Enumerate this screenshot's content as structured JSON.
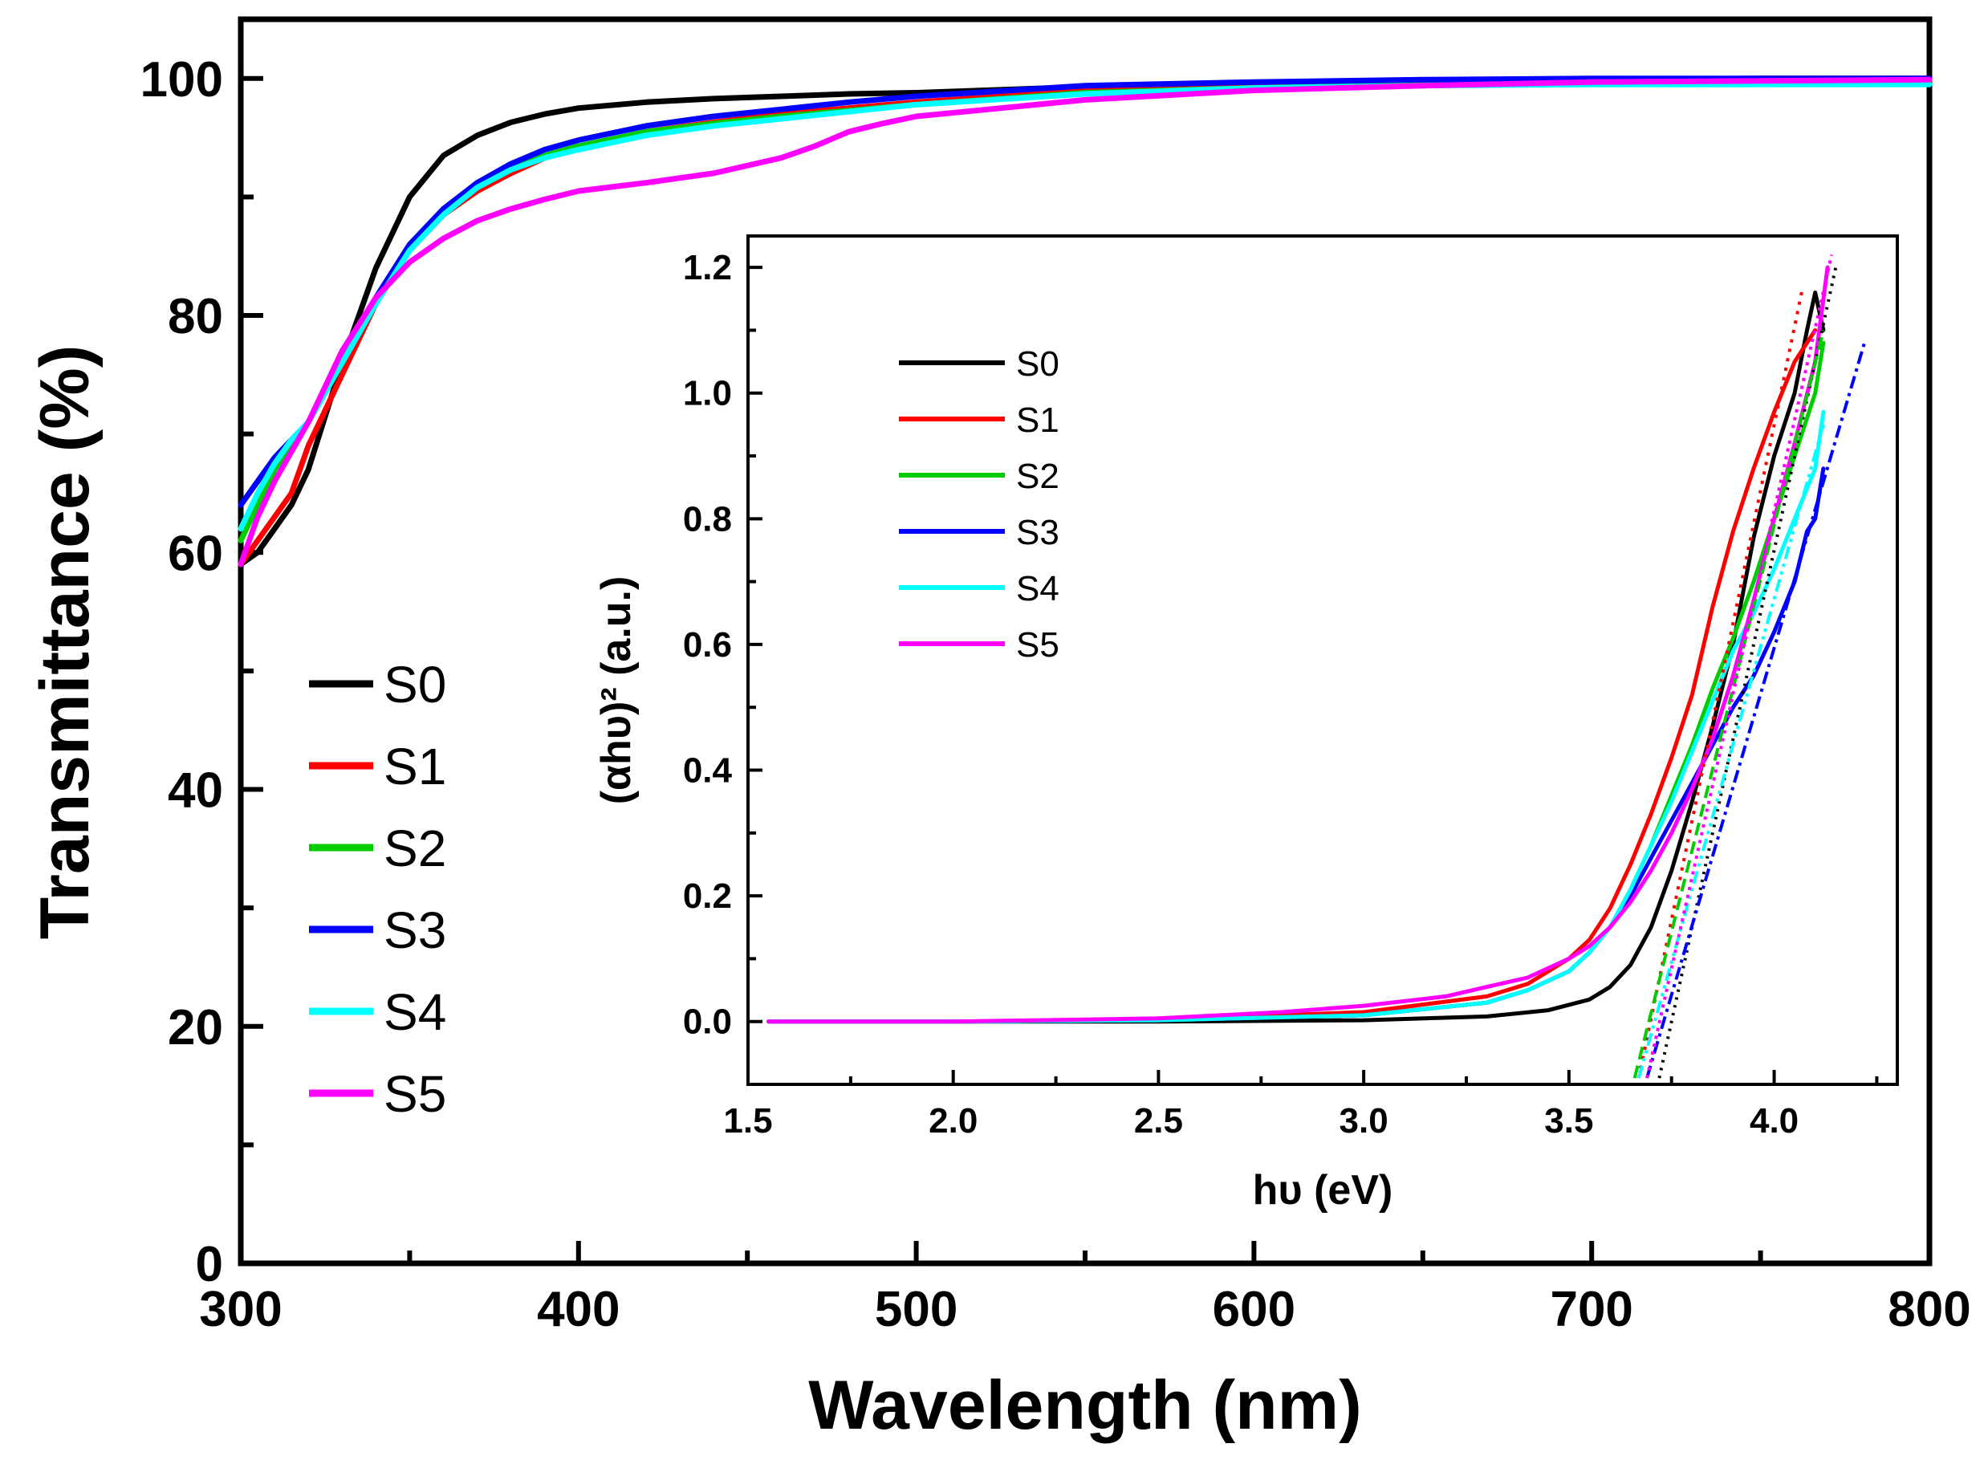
{
  "chart_data": [
    {
      "type": "line",
      "panel": "main",
      "title": "",
      "xlabel": "Wavelength (nm)",
      "ylabel": "Transmittance (%)",
      "xlim": [
        300,
        800
      ],
      "ylim": [
        0,
        105
      ],
      "xticks": [
        "300",
        "400",
        "500",
        "600",
        "700",
        "800"
      ],
      "yticks": [
        "0",
        "20",
        "40",
        "60",
        "80",
        "100"
      ],
      "legend_position": "left-middle",
      "series": [
        {
          "name": "S0",
          "color": "#000000",
          "x": [
            300,
            305,
            310,
            315,
            320,
            330,
            340,
            350,
            360,
            370,
            380,
            390,
            400,
            420,
            440,
            460,
            480,
            500,
            550,
            600,
            650,
            700,
            750,
            800
          ],
          "y": [
            59,
            60,
            62,
            64,
            67,
            76,
            84,
            90,
            93.5,
            95.2,
            96.3,
            97,
            97.5,
            98,
            98.3,
            98.5,
            98.7,
            98.8,
            99.3,
            99.6,
            99.8,
            99.9,
            100,
            100
          ]
        },
        {
          "name": "S1",
          "color": "#ff0000",
          "x": [
            300,
            305,
            310,
            315,
            320,
            330,
            340,
            350,
            360,
            370,
            380,
            390,
            400,
            420,
            440,
            460,
            480,
            500,
            550,
            600,
            650,
            700,
            750,
            800
          ],
          "y": [
            59,
            61,
            63,
            65,
            69,
            75,
            81,
            85.5,
            88.5,
            90.5,
            92,
            93.3,
            94.2,
            95.5,
            96.3,
            97,
            97.5,
            98,
            99,
            99.5,
            99.8,
            99.9,
            100,
            100
          ]
        },
        {
          "name": "S2",
          "color": "#00cc00",
          "x": [
            300,
            305,
            310,
            315,
            320,
            330,
            340,
            350,
            360,
            370,
            380,
            390,
            400,
            420,
            440,
            460,
            480,
            500,
            550,
            600,
            650,
            700,
            750,
            800
          ],
          "y": [
            61,
            64,
            67,
            69,
            71,
            76,
            81,
            85.5,
            88.5,
            90.8,
            92.3,
            93.5,
            94.3,
            95.5,
            96.2,
            96.8,
            97.3,
            97.8,
            98.8,
            99.2,
            99.5,
            99.6,
            99.7,
            99.8
          ]
        },
        {
          "name": "S3",
          "color": "#0000ff",
          "x": [
            300,
            305,
            310,
            315,
            320,
            330,
            340,
            350,
            360,
            370,
            380,
            390,
            400,
            420,
            440,
            460,
            480,
            500,
            550,
            600,
            650,
            700,
            750,
            800
          ],
          "y": [
            64,
            66,
            68,
            69.5,
            71,
            76,
            81.5,
            86,
            89,
            91.2,
            92.8,
            94,
            94.8,
            96,
            96.8,
            97.4,
            98,
            98.5,
            99.4,
            99.7,
            99.9,
            100,
            100,
            100
          ]
        },
        {
          "name": "S4",
          "color": "#00ffff",
          "x": [
            300,
            305,
            310,
            315,
            320,
            330,
            340,
            350,
            360,
            370,
            380,
            390,
            400,
            420,
            440,
            460,
            480,
            500,
            550,
            600,
            650,
            700,
            750,
            800
          ],
          "y": [
            62,
            65,
            67.5,
            69.5,
            71,
            76,
            81,
            85.5,
            88.5,
            90.8,
            92.3,
            93.3,
            94,
            95.2,
            96,
            96.6,
            97.2,
            97.8,
            98.7,
            99.2,
            99.4,
            99.5,
            99.5,
            99.5
          ]
        },
        {
          "name": "S5",
          "color": "#ff00ff",
          "x": [
            300,
            305,
            310,
            315,
            320,
            330,
            340,
            350,
            360,
            370,
            380,
            390,
            400,
            420,
            440,
            460,
            470,
            480,
            490,
            500,
            550,
            600,
            650,
            700,
            750,
            800
          ],
          "y": [
            59,
            63,
            66,
            68.5,
            71,
            77,
            81.5,
            84.5,
            86.5,
            88,
            89,
            89.8,
            90.5,
            91.2,
            92,
            93.3,
            94.3,
            95.5,
            96.2,
            96.8,
            98.2,
            99,
            99.4,
            99.7,
            99.8,
            99.9
          ]
        }
      ]
    },
    {
      "type": "line",
      "panel": "inset",
      "title": "",
      "xlabel": "hυ (eV)",
      "ylabel": "(αhυ)² (a.u.)",
      "xlim": [
        1.5,
        4.3
      ],
      "ylim": [
        -0.1,
        1.25
      ],
      "xticks": [
        "1.5",
        "2.0",
        "2.5",
        "3.0",
        "3.5",
        "4.0"
      ],
      "yticks": [
        "0.0",
        "0.2",
        "0.4",
        "0.6",
        "0.8",
        "1.0",
        "1.2"
      ],
      "legend_position": "top-left",
      "series": [
        {
          "name": "S0",
          "color": "#000000",
          "x": [
            1.55,
            2.0,
            2.5,
            3.0,
            3.3,
            3.45,
            3.55,
            3.6,
            3.65,
            3.7,
            3.75,
            3.8,
            3.85,
            3.9,
            3.95,
            4.0,
            4.05,
            4.08,
            4.1,
            4.12
          ],
          "y": [
            0,
            0,
            0,
            0.002,
            0.008,
            0.018,
            0.035,
            0.055,
            0.09,
            0.15,
            0.24,
            0.35,
            0.47,
            0.6,
            0.77,
            0.9,
            1.0,
            1.1,
            1.16,
            1.1
          ]
        },
        {
          "name": "S1",
          "color": "#ff0000",
          "x": [
            1.55,
            2.0,
            2.5,
            3.0,
            3.3,
            3.4,
            3.5,
            3.55,
            3.6,
            3.65,
            3.7,
            3.75,
            3.8,
            3.85,
            3.9,
            3.95,
            4.0,
            4.05,
            4.1
          ],
          "y": [
            0,
            0,
            0.003,
            0.015,
            0.04,
            0.06,
            0.1,
            0.13,
            0.18,
            0.25,
            0.33,
            0.42,
            0.52,
            0.66,
            0.78,
            0.88,
            0.97,
            1.05,
            1.1
          ]
        },
        {
          "name": "S2",
          "color": "#00cc00",
          "x": [
            1.55,
            2.0,
            2.5,
            3.0,
            3.3,
            3.4,
            3.5,
            3.55,
            3.6,
            3.65,
            3.7,
            3.75,
            3.8,
            3.85,
            3.9,
            3.95,
            4.0,
            4.05,
            4.1,
            4.12
          ],
          "y": [
            0,
            0,
            0.002,
            0.01,
            0.03,
            0.05,
            0.08,
            0.11,
            0.15,
            0.21,
            0.28,
            0.36,
            0.44,
            0.53,
            0.61,
            0.7,
            0.8,
            0.9,
            1.0,
            1.08
          ]
        },
        {
          "name": "S3",
          "color": "#0000ff",
          "x": [
            1.55,
            2.0,
            2.5,
            3.0,
            3.3,
            3.4,
            3.5,
            3.55,
            3.6,
            3.65,
            3.7,
            3.75,
            3.8,
            3.85,
            3.9,
            3.95,
            4.0,
            4.05,
            4.08,
            4.1,
            4.12
          ],
          "y": [
            0,
            0,
            0.002,
            0.01,
            0.03,
            0.05,
            0.08,
            0.11,
            0.15,
            0.2,
            0.26,
            0.32,
            0.38,
            0.44,
            0.5,
            0.55,
            0.62,
            0.7,
            0.78,
            0.8,
            0.88
          ]
        },
        {
          "name": "S4",
          "color": "#00ffff",
          "x": [
            1.55,
            2.0,
            2.5,
            3.0,
            3.3,
            3.4,
            3.5,
            3.55,
            3.6,
            3.65,
            3.7,
            3.75,
            3.8,
            3.85,
            3.9,
            3.95,
            4.0,
            4.05,
            4.1,
            4.12
          ],
          "y": [
            0,
            0,
            0.002,
            0.01,
            0.03,
            0.05,
            0.08,
            0.11,
            0.15,
            0.21,
            0.28,
            0.35,
            0.43,
            0.51,
            0.59,
            0.65,
            0.72,
            0.8,
            0.88,
            0.97
          ]
        },
        {
          "name": "S5",
          "color": "#ff00ff",
          "x": [
            1.55,
            2.0,
            2.5,
            2.8,
            3.0,
            3.2,
            3.3,
            3.4,
            3.5,
            3.55,
            3.6,
            3.65,
            3.7,
            3.75,
            3.8,
            3.85,
            3.9,
            3.95,
            4.0,
            4.05,
            4.1,
            4.13
          ],
          "y": [
            0,
            0,
            0.005,
            0.015,
            0.025,
            0.04,
            0.055,
            0.07,
            0.1,
            0.12,
            0.15,
            0.19,
            0.24,
            0.3,
            0.37,
            0.45,
            0.55,
            0.67,
            0.8,
            0.92,
            1.05,
            1.2
          ]
        }
      ],
      "fit_lines": [
        {
          "name": "S0 fit",
          "color": "#000000",
          "x": [
            3.72,
            4.15
          ],
          "y": [
            -0.09,
            1.2
          ]
        },
        {
          "name": "S1 fit",
          "color": "#ff0000",
          "x": [
            3.67,
            4.07
          ],
          "y": [
            -0.09,
            1.17
          ]
        },
        {
          "name": "S2 fit",
          "color": "#00cc00",
          "x": [
            3.66,
            4.12
          ],
          "y": [
            -0.09,
            1.1
          ]
        },
        {
          "name": "S3 fit",
          "color": "#0000ff",
          "x": [
            3.69,
            4.22
          ],
          "y": [
            -0.09,
            1.08
          ]
        },
        {
          "name": "S4 fit",
          "color": "#00ffff",
          "x": [
            3.67,
            4.12
          ],
          "y": [
            -0.09,
            0.95
          ]
        },
        {
          "name": "S5 fit",
          "color": "#ff00ff",
          "x": [
            3.69,
            4.14
          ],
          "y": [
            -0.09,
            1.22
          ]
        }
      ]
    }
  ]
}
